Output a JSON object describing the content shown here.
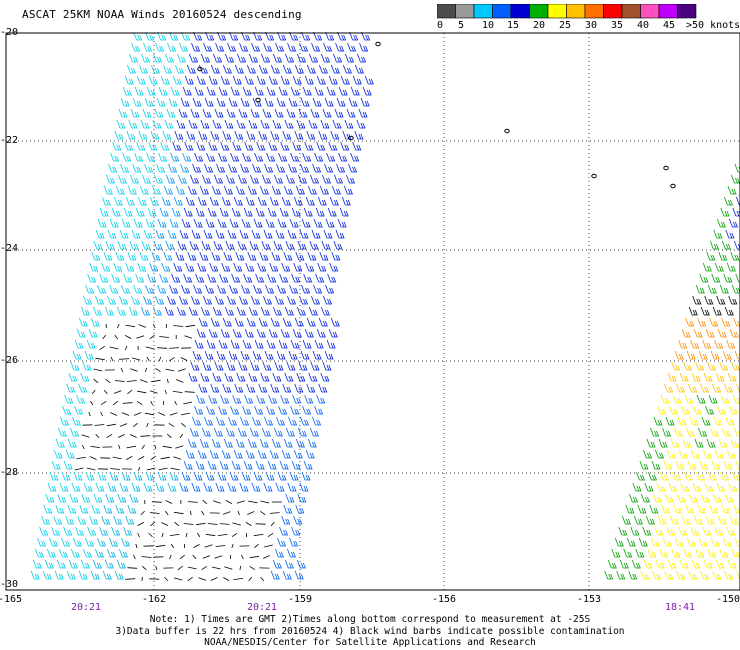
{
  "title": "ASCAT 25KM NOAA Winds 20160524 descending",
  "colorbar": {
    "colors": [
      "#4d4d4d",
      "#9a9a9a",
      "#00c8ff",
      "#0060ff",
      "#0000d0",
      "#00b000",
      "#ffff00",
      "#ffc000",
      "#ff7000",
      "#ff0000",
      "#a0522d",
      "#ff50c0",
      "#c000ff",
      "#4b0082"
    ],
    "labels": [
      "0",
      "5",
      "10",
      "15",
      "20",
      "25",
      "30",
      "35",
      "40",
      "45",
      ">50 knots"
    ]
  },
  "axes": {
    "y_ticks": [
      "-20",
      "-22",
      "-24",
      "-26",
      "-28",
      "-30"
    ],
    "x_ticks": [
      "-165",
      "-162",
      "-159",
      "-156",
      "-153",
      "-150"
    ],
    "time_ticks": [
      "20:21",
      "20:21",
      "18:41"
    ]
  },
  "notes": [
    "Note: 1) Times are GMT 2)Times along bottom correspond to measurement at -25S",
    "3)Data buffer is 22 hrs from 20160524 4) Black wind barbs indicate possible contamination",
    "NOAA/NESDIS/Center for Satellite Applications and Research"
  ]
}
